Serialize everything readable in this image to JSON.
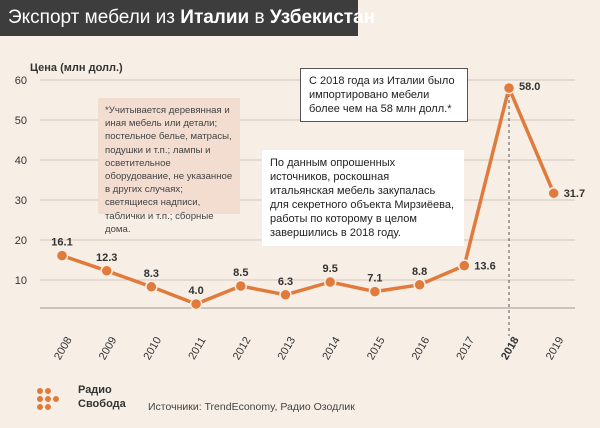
{
  "header": {
    "title_part1": "Экспорт мебели из ",
    "title_italy": "Италии",
    "title_part2": " в ",
    "title_uzb": "Узбекистан"
  },
  "chart_data": {
    "type": "line",
    "ylabel": "Цена (млн долл.)",
    "ylim": [
      0,
      60
    ],
    "yticks": [
      10,
      20,
      30,
      40,
      50,
      60
    ],
    "categories": [
      "2008",
      "2009",
      "2010",
      "2011",
      "2012",
      "2013",
      "2014",
      "2015",
      "2016",
      "2017",
      "2018",
      "2019"
    ],
    "values": [
      16.1,
      12.3,
      8.3,
      4.0,
      8.5,
      6.3,
      9.5,
      7.1,
      8.8,
      13.6,
      58.0,
      31.7
    ],
    "labels": [
      "16.1",
      "12.3",
      "8.3",
      "4.0",
      "8.5",
      "6.3",
      "9.5",
      "7.1",
      "8.8",
      "13.6",
      "58.0",
      "31.7"
    ],
    "highlight_category": "2018",
    "grid": "horizontal",
    "color": "#e07b3c"
  },
  "footnote": "*Учитывается деревянная и иная мебель или детали; постельное белье, матрасы, подушки и т.п.; лампы и осветительное оборудование, не указанное в других случаях; светящиеся надписи, таблички и т.п.; сборные дома.",
  "story": "По данным опрошенных источников, роскошная итальянская мебель закупалась для секретного объекта Мирзиёева, работы по которому в целом завершились в 2018 году.",
  "callout": "С 2018 года из Италии было импортировано мебели более чем на 58 млн долл.*",
  "logo": {
    "line1": "Радио",
    "line2": "Свобода"
  },
  "source": "Источники: TrendEconomy, Радио Озодлик"
}
